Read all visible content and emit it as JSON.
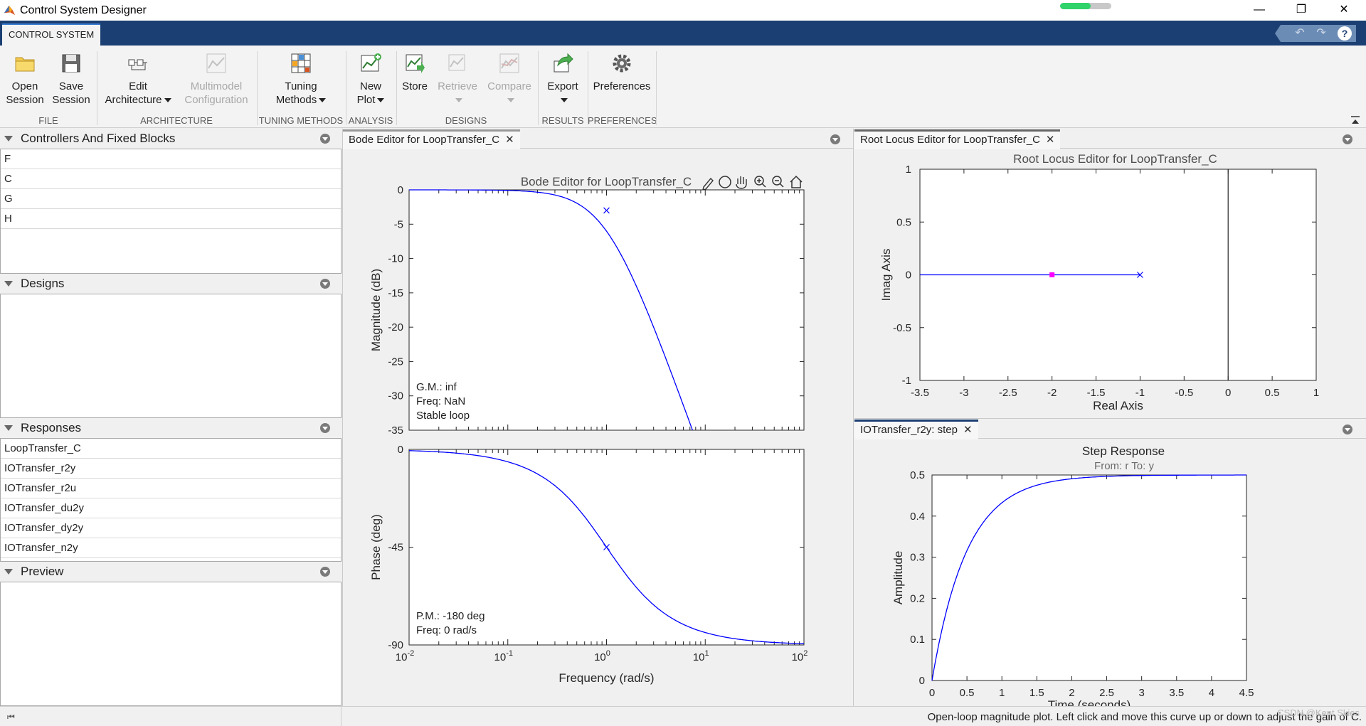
{
  "window": {
    "title": "Control System Designer",
    "controls": {
      "minimize": "—",
      "restore": "❐",
      "close": "✕"
    },
    "busy_progress": 0.6
  },
  "tabs": {
    "active": "CONTROL SYSTEM"
  },
  "quick_access": {
    "undo": "↶",
    "redo": "↷",
    "help": "?"
  },
  "ribbon": {
    "buttons": {
      "open_session": [
        "Open",
        "Session"
      ],
      "save_session": [
        "Save",
        "Session"
      ],
      "edit_architecture": [
        "Edit",
        "Architecture"
      ],
      "multimodel_configuration": [
        "Multimodel",
        "Configuration"
      ],
      "tuning_methods": [
        "Tuning",
        "Methods"
      ],
      "new_plot": [
        "New",
        "Plot"
      ],
      "store": "Store",
      "retrieve": "Retrieve",
      "compare": "Compare",
      "export": "Export",
      "preferences": "Preferences"
    },
    "sections": {
      "file": "FILE",
      "architecture": "ARCHITECTURE",
      "tuning_methods": "TUNING METHODS",
      "analysis": "ANALYSIS",
      "designs": "DESIGNS",
      "results": "RESULTS",
      "preferences": "PREFERENCES"
    }
  },
  "panels": {
    "controllers": {
      "title": "Controllers And Fixed Blocks",
      "items": [
        "F",
        "C",
        "G",
        "H"
      ]
    },
    "designs": {
      "title": "Designs",
      "items": []
    },
    "responses": {
      "title": "Responses",
      "items": [
        "LoopTransfer_C",
        "IOTransfer_r2y",
        "IOTransfer_r2u",
        "IOTransfer_du2y",
        "IOTransfer_dy2y",
        "IOTransfer_n2y"
      ]
    },
    "preview": {
      "title": "Preview"
    }
  },
  "documents": {
    "bode_tab": "Bode Editor for LoopTransfer_C",
    "rlocus_tab": "Root Locus Editor for LoopTransfer_C",
    "step_tab": "IOTransfer_r2y: step",
    "close_glyph": "✕"
  },
  "status": {
    "text": "Open-loop magnitude plot. Left click and move this curve up or down to adjust the gain of C."
  },
  "watermark": "CSDN @Kent Skies",
  "chart_data": [
    {
      "type": "line",
      "name": "bode",
      "title": "Bode Editor for LoopTransfer_C",
      "xlabel": "Frequency (rad/s)",
      "x_scale": "log",
      "xlim": [
        0.01,
        100
      ],
      "x_ticks": [
        0.01,
        0.1,
        1,
        10,
        100
      ],
      "x_tick_labels": [
        [
          "10",
          "-2"
        ],
        [
          "10",
          "-1"
        ],
        [
          "10",
          "0"
        ],
        [
          "10",
          "1"
        ],
        [
          "10",
          "2"
        ]
      ],
      "magnitude": {
        "ylabel": "Magnitude (dB)",
        "ylim": [
          -35,
          0
        ],
        "y_ticks": [
          0,
          -5,
          -10,
          -15,
          -20,
          -25,
          -30,
          -35
        ],
        "y_tick_labels": [
          "0",
          "-5",
          "-10",
          "-15",
          "-20",
          "-25",
          "-30",
          "-35"
        ],
        "curve": "-20*log10(w^2+1)",
        "pole_marker": {
          "x": 1,
          "y": -3
        },
        "annotations": [
          "G.M.: inf",
          "Freq: NaN",
          "Stable loop"
        ]
      },
      "phase": {
        "ylabel": "Phase (deg)",
        "ylim": [
          -90,
          0
        ],
        "y_ticks": [
          0,
          -45,
          -90
        ],
        "y_tick_labels": [
          "0",
          "-45",
          "-90"
        ],
        "curve": "-atan(w) in degrees",
        "pole_marker": {
          "x": 1,
          "y": -45
        },
        "annotations": [
          "P.M.: -180 deg",
          "Freq: 0 rad/s"
        ]
      },
      "toolbar_icons": [
        "edit-icon",
        "data-cursor-icon",
        "pan-icon",
        "zoom-in-icon",
        "zoom-out-icon",
        "home-icon"
      ]
    },
    {
      "type": "line",
      "name": "root-locus",
      "title": "Root Locus Editor for LoopTransfer_C",
      "xlabel": "Real Axis",
      "ylabel": "Imag Axis",
      "xlim": [
        -3.5,
        1
      ],
      "ylim": [
        -1,
        1
      ],
      "x_ticks": [
        -3.5,
        -3,
        -2.5,
        -2,
        -1.5,
        -1,
        -0.5,
        0,
        0.5,
        1
      ],
      "x_tick_labels": [
        "-3.5",
        "-3",
        "-2.5",
        "-2",
        "-1.5",
        "-1",
        "-0.5",
        "0",
        "0.5",
        "1"
      ],
      "y_ticks": [
        1,
        0.5,
        0,
        -0.5,
        -1
      ],
      "y_tick_labels": [
        "1",
        "0.5",
        "0",
        "-0.5",
        "-1"
      ],
      "locus": {
        "x": [
          -3.5,
          -1
        ],
        "y": [
          0,
          0
        ]
      },
      "pole": {
        "x": -1,
        "y": 0
      },
      "closed_loop_pole": {
        "x": -2,
        "y": 0,
        "color": "#ff00ff"
      },
      "imag_axis_x": 0
    },
    {
      "type": "line",
      "name": "step",
      "title": "Step Response",
      "subtitle": "From: r  To: y",
      "xlabel": "Time (seconds)",
      "ylabel": "Amplitude",
      "xlim": [
        0,
        4.5
      ],
      "ylim": [
        0,
        0.5
      ],
      "x_ticks": [
        0,
        0.5,
        1,
        1.5,
        2,
        2.5,
        3,
        3.5,
        4,
        4.5
      ],
      "x_tick_labels": [
        "0",
        "0.5",
        "1",
        "1.5",
        "2",
        "2.5",
        "3",
        "3.5",
        "4",
        "4.5"
      ],
      "y_ticks": [
        0,
        0.1,
        0.2,
        0.3,
        0.4,
        0.5
      ],
      "y_tick_labels": [
        "0",
        "0.1",
        "0.2",
        "0.3",
        "0.4",
        "0.5"
      ],
      "curve": "0.5*(1-exp(-2t))",
      "steady_state": 0.5
    }
  ],
  "colors": {
    "tabstrip": "#1b3f72",
    "curve": "#0000ff",
    "closed_loop_pole": "#ff00ff",
    "axes_border": "#262626"
  }
}
